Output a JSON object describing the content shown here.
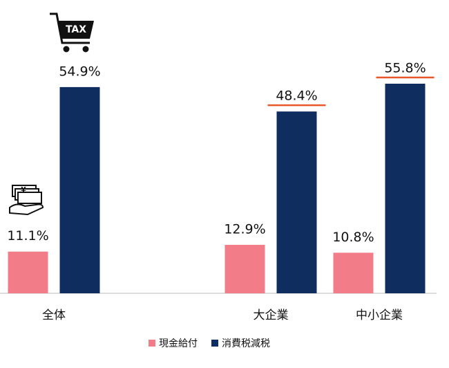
{
  "chart_data": {
    "type": "bar",
    "categories": [
      "全体",
      null,
      "大企業",
      "中小企業"
    ],
    "series": [
      {
        "name": "現金給付",
        "color": "#f27d88",
        "values": [
          11.1,
          null,
          12.9,
          10.8
        ],
        "value_labels": [
          "11.1%",
          null,
          "12.9%",
          "10.8%"
        ]
      },
      {
        "name": "消費税減税",
        "color": "#0f2d5e",
        "values": [
          54.9,
          null,
          48.4,
          55.8
        ],
        "value_labels": [
          "54.9%",
          null,
          "48.4%",
          "55.8%"
        ],
        "underlined": [
          false,
          null,
          true,
          true
        ],
        "underline_color": "#e8572a"
      }
    ],
    "tax_icon_label": "TAX",
    "cash_icon_label": "¥"
  }
}
